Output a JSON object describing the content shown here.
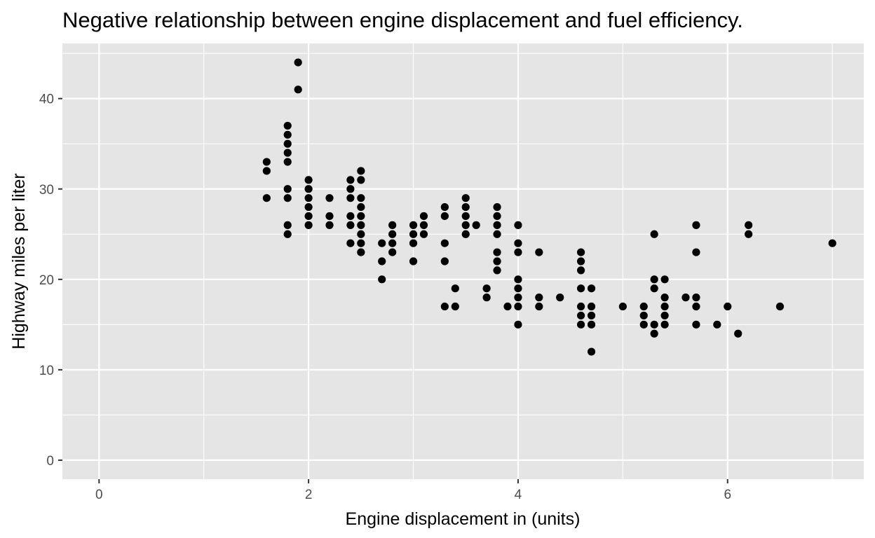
{
  "chart_data": {
    "type": "scatter",
    "title": "Negative relationship between engine displacement and fuel efficiency.",
    "xlabel": "Engine displacement in (units)",
    "ylabel": "Highway miles per liter",
    "xlim": [
      -0.35,
      7.3
    ],
    "ylim": [
      -2.1,
      46.1
    ],
    "x_ticks": [
      0,
      2,
      4,
      6
    ],
    "y_ticks": [
      0,
      10,
      20,
      30,
      40
    ],
    "grid": true,
    "colors": {
      "panel": "#e5e5e5",
      "grid": "#ffffff",
      "point": "#000000",
      "tick": "#4d4d4d"
    },
    "points": [
      [
        1.6,
        33
      ],
      [
        1.6,
        32
      ],
      [
        1.6,
        29
      ],
      [
        1.8,
        37
      ],
      [
        1.8,
        36
      ],
      [
        1.8,
        35
      ],
      [
        1.8,
        34
      ],
      [
        1.8,
        33
      ],
      [
        1.8,
        30
      ],
      [
        1.8,
        29
      ],
      [
        1.8,
        26
      ],
      [
        1.8,
        25
      ],
      [
        1.9,
        44
      ],
      [
        1.9,
        41
      ],
      [
        2.0,
        31
      ],
      [
        2.0,
        30
      ],
      [
        2.0,
        29
      ],
      [
        2.0,
        28
      ],
      [
        2.0,
        27
      ],
      [
        2.0,
        26
      ],
      [
        2.2,
        29
      ],
      [
        2.2,
        27
      ],
      [
        2.2,
        26
      ],
      [
        2.4,
        31
      ],
      [
        2.4,
        30
      ],
      [
        2.4,
        29
      ],
      [
        2.4,
        27
      ],
      [
        2.4,
        26
      ],
      [
        2.4,
        24
      ],
      [
        2.5,
        32
      ],
      [
        2.5,
        31
      ],
      [
        2.5,
        29
      ],
      [
        2.5,
        28
      ],
      [
        2.5,
        27
      ],
      [
        2.5,
        26
      ],
      [
        2.5,
        25
      ],
      [
        2.5,
        24
      ],
      [
        2.5,
        23
      ],
      [
        2.7,
        24
      ],
      [
        2.7,
        22
      ],
      [
        2.7,
        20
      ],
      [
        2.8,
        26
      ],
      [
        2.8,
        25
      ],
      [
        2.8,
        24
      ],
      [
        2.8,
        23
      ],
      [
        3.0,
        26
      ],
      [
        3.0,
        25
      ],
      [
        3.0,
        24
      ],
      [
        3.0,
        22
      ],
      [
        3.1,
        27
      ],
      [
        3.1,
        26
      ],
      [
        3.1,
        25
      ],
      [
        3.3,
        28
      ],
      [
        3.3,
        27
      ],
      [
        3.3,
        24
      ],
      [
        3.3,
        22
      ],
      [
        3.3,
        17
      ],
      [
        3.4,
        19
      ],
      [
        3.4,
        17
      ],
      [
        3.5,
        29
      ],
      [
        3.5,
        28
      ],
      [
        3.5,
        27
      ],
      [
        3.5,
        26
      ],
      [
        3.5,
        25
      ],
      [
        3.6,
        26
      ],
      [
        3.7,
        19
      ],
      [
        3.7,
        18
      ],
      [
        3.8,
        28
      ],
      [
        3.8,
        27
      ],
      [
        3.8,
        26
      ],
      [
        3.8,
        25
      ],
      [
        3.8,
        23
      ],
      [
        3.8,
        22
      ],
      [
        3.8,
        21
      ],
      [
        3.9,
        17
      ],
      [
        4.0,
        26
      ],
      [
        4.0,
        24
      ],
      [
        4.0,
        23
      ],
      [
        4.0,
        20
      ],
      [
        4.0,
        19
      ],
      [
        4.0,
        18
      ],
      [
        4.0,
        17
      ],
      [
        4.0,
        15
      ],
      [
        4.2,
        23
      ],
      [
        4.2,
        18
      ],
      [
        4.2,
        17
      ],
      [
        4.4,
        18
      ],
      [
        4.6,
        23
      ],
      [
        4.6,
        22
      ],
      [
        4.6,
        21
      ],
      [
        4.6,
        19
      ],
      [
        4.6,
        17
      ],
      [
        4.6,
        16
      ],
      [
        4.6,
        15
      ],
      [
        4.7,
        19
      ],
      [
        4.7,
        17
      ],
      [
        4.7,
        16
      ],
      [
        4.7,
        15
      ],
      [
        4.7,
        12
      ],
      [
        5.0,
        17
      ],
      [
        5.2,
        17
      ],
      [
        5.2,
        16
      ],
      [
        5.2,
        15
      ],
      [
        5.3,
        25
      ],
      [
        5.3,
        20
      ],
      [
        5.3,
        19
      ],
      [
        5.3,
        15
      ],
      [
        5.3,
        14
      ],
      [
        5.4,
        20
      ],
      [
        5.4,
        18
      ],
      [
        5.4,
        17
      ],
      [
        5.4,
        16
      ],
      [
        5.4,
        15
      ],
      [
        5.6,
        18
      ],
      [
        5.7,
        26
      ],
      [
        5.7,
        23
      ],
      [
        5.7,
        18
      ],
      [
        5.7,
        17
      ],
      [
        5.7,
        15
      ],
      [
        5.9,
        15
      ],
      [
        6.0,
        17
      ],
      [
        6.1,
        14
      ],
      [
        6.2,
        26
      ],
      [
        6.2,
        25
      ],
      [
        6.5,
        17
      ],
      [
        7.0,
        24
      ]
    ]
  }
}
